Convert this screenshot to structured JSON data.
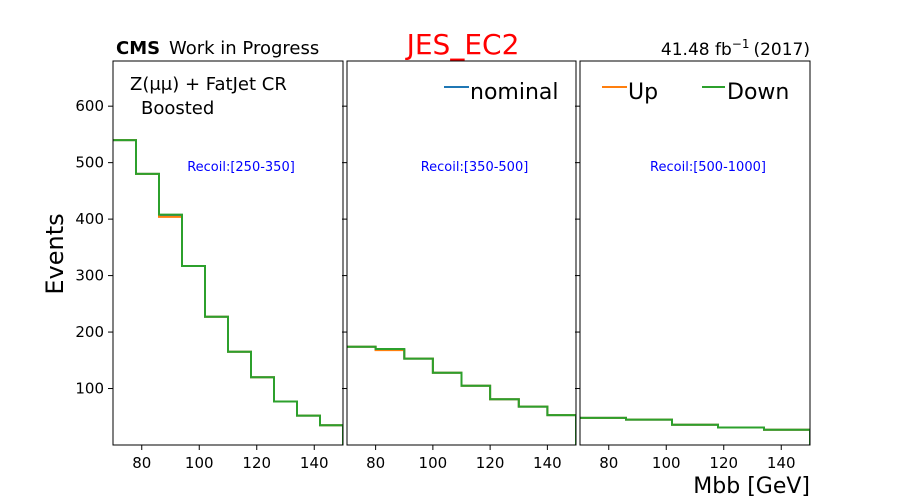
{
  "header": {
    "experiment": "CMS",
    "status": "Work in Progress",
    "title": "JES_EC2",
    "lumi": "41.48 fb",
    "lumi_exp": "−1",
    "lumi_year": "(2017)"
  },
  "annotations": {
    "region_line1": "Z(μμ) + FatJet CR",
    "region_line2": "Boosted"
  },
  "colors": {
    "nominal": "#1f77b4",
    "up": "#ff7f0e",
    "down": "#2ca02c",
    "title": "#ff0000",
    "recoil": "#0000ff"
  },
  "chart_data": {
    "type": "line",
    "style": "step-histogram",
    "xlabel": "Mbb [GeV]",
    "ylabel": "Events",
    "xlim": [
      70,
      150
    ],
    "ylim": [
      0,
      680
    ],
    "yticks": [
      100,
      200,
      300,
      400,
      500,
      600
    ],
    "xticks": [
      80,
      100,
      120,
      140
    ],
    "bin_edges": [
      70,
      78,
      86,
      94,
      102,
      110,
      118,
      126,
      134,
      142,
      150
    ],
    "legend": [
      {
        "key": "nominal",
        "label": "nominal",
        "panel": 1
      },
      {
        "key": "up",
        "label": "Up",
        "panel": 2
      },
      {
        "key": "down",
        "label": "Down",
        "panel": 2
      }
    ],
    "panels": [
      {
        "recoil": "Recoil:[250-350]",
        "bin_edges": [
          70,
          78,
          86,
          94,
          102,
          110,
          118,
          126,
          134,
          142,
          150
        ],
        "series": [
          {
            "key": "nominal",
            "values": [
              540,
              480,
              406,
              317,
              227,
              165,
              120,
              77,
              52,
              35
            ]
          },
          {
            "key": "up",
            "values": [
              540,
              480,
              404,
              317,
              227,
              165,
              120,
              77,
              52,
              35
            ]
          },
          {
            "key": "down",
            "values": [
              540,
              480,
              408,
              317,
              227,
              165,
              120,
              77,
              52,
              35
            ]
          }
        ]
      },
      {
        "recoil": "Recoil:[350-500]",
        "bin_edges": [
          70,
          80,
          90,
          100,
          110,
          120,
          130,
          140,
          150
        ],
        "series": [
          {
            "key": "nominal",
            "values": [
              174,
              169,
              153,
              128,
              105,
              81,
              68,
              53
            ]
          },
          {
            "key": "up",
            "values": [
              174,
              168,
              153,
              128,
              105,
              81,
              68,
              53
            ]
          },
          {
            "key": "down",
            "values": [
              174,
              170,
              153,
              128,
              105,
              81,
              68,
              53
            ]
          }
        ]
      },
      {
        "recoil": "Recoil:[500-1000]",
        "bin_edges": [
          70,
          86,
          102,
          118,
          134,
          150
        ],
        "series": [
          {
            "key": "nominal",
            "values": [
              48,
              45,
              36,
              31,
              27
            ]
          },
          {
            "key": "up",
            "values": [
              48,
              45,
              36,
              31,
              27
            ]
          },
          {
            "key": "down",
            "values": [
              48,
              45,
              36,
              31,
              27
            ]
          }
        ]
      }
    ]
  }
}
